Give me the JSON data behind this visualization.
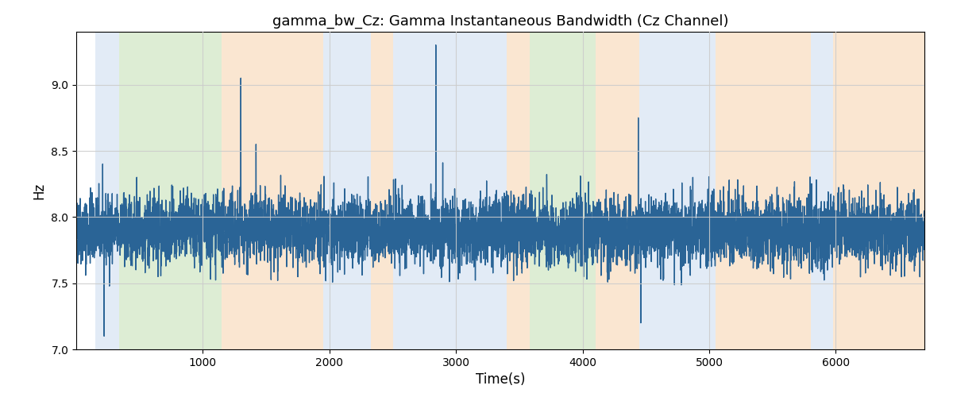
{
  "title": "gamma_bw_Cz: Gamma Instantaneous Bandwidth (Cz Channel)",
  "xlabel": "Time(s)",
  "ylabel": "Hz",
  "xlim": [
    0,
    6700
  ],
  "ylim": [
    7.0,
    9.4
  ],
  "line_color": "#2a6496",
  "line_width": 1.0,
  "background_color": "#ffffff",
  "grid_color": "#cccccc",
  "regions": [
    {
      "start": 150,
      "end": 340,
      "color": "#aec6e8",
      "alpha": 0.35
    },
    {
      "start": 340,
      "end": 1150,
      "color": "#b5d9a0",
      "alpha": 0.45
    },
    {
      "start": 1150,
      "end": 1950,
      "color": "#f5c99a",
      "alpha": 0.45
    },
    {
      "start": 1950,
      "end": 2330,
      "color": "#aec6e8",
      "alpha": 0.35
    },
    {
      "start": 2330,
      "end": 2500,
      "color": "#f5c99a",
      "alpha": 0.45
    },
    {
      "start": 2500,
      "end": 3400,
      "color": "#aec6e8",
      "alpha": 0.35
    },
    {
      "start": 3400,
      "end": 3580,
      "color": "#f5c99a",
      "alpha": 0.45
    },
    {
      "start": 3580,
      "end": 4100,
      "color": "#b5d9a0",
      "alpha": 0.45
    },
    {
      "start": 4100,
      "end": 4450,
      "color": "#f5c99a",
      "alpha": 0.45
    },
    {
      "start": 4450,
      "end": 5050,
      "color": "#aec6e8",
      "alpha": 0.35
    },
    {
      "start": 5050,
      "end": 5800,
      "color": "#f5c99a",
      "alpha": 0.45
    },
    {
      "start": 5800,
      "end": 5980,
      "color": "#aec6e8",
      "alpha": 0.35
    },
    {
      "start": 5980,
      "end": 6700,
      "color": "#f5c99a",
      "alpha": 0.45
    }
  ],
  "seed": 42,
  "n_points": 6700,
  "time_start": 0,
  "time_end": 6700,
  "base_value": 7.9,
  "noise_scale": 0.13
}
